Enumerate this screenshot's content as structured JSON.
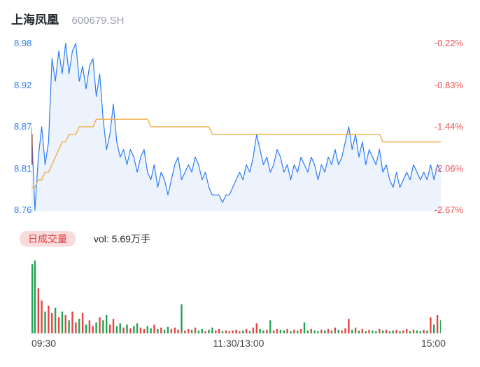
{
  "header": {
    "name": "上海凤凰",
    "code": "600679.SH"
  },
  "volume_header": {
    "badge": "日成交量",
    "label": "vol: 5.69万手",
    "total_volume": "5.69万手"
  },
  "chart_data": {
    "type": "line",
    "title": "上海凤凰 600679.SH 分时走势",
    "prev_close": 9.0,
    "ylim": [
      8.76,
      8.98
    ],
    "grid": false,
    "legend_position": "none",
    "x_ticks": [
      "09:30",
      "11:30/13:00",
      "15:00"
    ],
    "y_left_labels": [
      "8.98",
      "8.92",
      "8.87",
      "8.81",
      "8.76"
    ],
    "y_right_labels": [
      "-0.22%",
      "-0.83%",
      "-1.44%",
      "-2.06%",
      "-2.67%"
    ],
    "open_marker": {
      "price_from": 8.86,
      "price_to": 8.82
    },
    "series": [
      {
        "name": "price",
        "values": [
          8.87,
          8.76,
          8.83,
          8.87,
          8.82,
          8.85,
          8.96,
          8.93,
          8.97,
          8.94,
          8.98,
          8.94,
          8.97,
          8.98,
          8.93,
          8.95,
          8.92,
          8.95,
          8.96,
          8.91,
          8.94,
          8.88,
          8.84,
          8.86,
          8.9,
          8.85,
          8.83,
          8.84,
          8.82,
          8.84,
          8.83,
          8.81,
          8.83,
          8.84,
          8.81,
          8.8,
          8.82,
          8.79,
          8.81,
          8.8,
          8.78,
          8.8,
          8.82,
          8.83,
          8.8,
          8.81,
          8.82,
          8.81,
          8.83,
          8.82,
          8.8,
          8.81,
          8.79,
          8.78,
          8.78,
          8.78,
          8.77,
          8.78,
          8.78,
          8.79,
          8.8,
          8.81,
          8.8,
          8.82,
          8.81,
          8.83,
          8.86,
          8.84,
          8.82,
          8.83,
          8.81,
          8.82,
          8.84,
          8.83,
          8.81,
          8.82,
          8.8,
          8.82,
          8.81,
          8.83,
          8.82,
          8.81,
          8.83,
          8.82,
          8.8,
          8.82,
          8.81,
          8.83,
          8.82,
          8.84,
          8.82,
          8.83,
          8.85,
          8.87,
          8.84,
          8.86,
          8.83,
          8.85,
          8.82,
          8.84,
          8.83,
          8.82,
          8.84,
          8.81,
          8.82,
          8.8,
          8.79,
          8.81,
          8.79,
          8.8,
          8.81,
          8.8,
          8.82,
          8.81,
          8.8,
          8.81,
          8.8,
          8.82,
          8.8,
          8.82,
          8.81
        ]
      },
      {
        "name": "avg_price",
        "values": [
          8.79,
          8.79,
          8.8,
          8.8,
          8.81,
          8.81,
          8.82,
          8.83,
          8.84,
          8.85,
          8.85,
          8.86,
          8.86,
          8.86,
          8.87,
          8.87,
          8.87,
          8.87,
          8.87,
          8.88,
          8.88,
          8.88,
          8.88,
          8.88,
          8.88,
          8.88,
          8.88,
          8.88,
          8.88,
          8.88,
          8.88,
          8.88,
          8.88,
          8.88,
          8.88,
          8.87,
          8.87,
          8.87,
          8.87,
          8.87,
          8.87,
          8.87,
          8.87,
          8.87,
          8.87,
          8.87,
          8.87,
          8.87,
          8.87,
          8.87,
          8.87,
          8.87,
          8.87,
          8.86,
          8.86,
          8.86,
          8.86,
          8.86,
          8.86,
          8.86,
          8.86,
          8.86,
          8.86,
          8.86,
          8.86,
          8.86,
          8.86,
          8.86,
          8.86,
          8.86,
          8.86,
          8.86,
          8.86,
          8.86,
          8.86,
          8.86,
          8.86,
          8.86,
          8.86,
          8.86,
          8.86,
          8.86,
          8.86,
          8.86,
          8.86,
          8.86,
          8.86,
          8.86,
          8.86,
          8.86,
          8.86,
          8.86,
          8.86,
          8.86,
          8.86,
          8.86,
          8.86,
          8.86,
          8.86,
          8.86,
          8.86,
          8.86,
          8.86,
          8.85,
          8.85,
          8.85,
          8.85,
          8.85,
          8.85,
          8.85,
          8.85,
          8.85,
          8.85,
          8.85,
          8.85,
          8.85,
          8.85,
          8.85,
          8.85,
          8.85,
          8.85
        ]
      },
      {
        "name": "volume",
        "values": [
          95,
          100,
          62,
          45,
          30,
          38,
          28,
          35,
          22,
          30,
          25,
          18,
          30,
          15,
          20,
          28,
          12,
          18,
          10,
          15,
          22,
          18,
          25,
          12,
          20,
          10,
          14,
          8,
          12,
          7,
          10,
          14,
          8,
          6,
          10,
          7,
          12,
          6,
          8,
          5,
          9,
          6,
          8,
          5,
          40,
          4,
          6,
          5,
          8,
          4,
          6,
          3,
          5,
          8,
          4,
          6,
          3,
          4,
          3,
          4,
          5,
          3,
          4,
          6,
          3,
          8,
          14,
          6,
          4,
          5,
          18,
          4,
          6,
          5,
          4,
          6,
          3,
          5,
          4,
          6,
          15,
          4,
          6,
          4,
          3,
          5,
          4,
          6,
          4,
          8,
          5,
          4,
          7,
          20,
          5,
          8,
          4,
          6,
          3,
          5,
          4,
          3,
          6,
          4,
          5,
          3,
          4,
          5,
          3,
          4,
          6,
          3,
          5,
          4,
          3,
          5,
          4,
          22,
          12,
          25,
          18
        ]
      }
    ]
  },
  "colors": {
    "price_line": "#2e7cf6",
    "price_fill": "#ecf3fd",
    "avg_line": "#f2b14f",
    "up": "#e84342",
    "down": "#22a454",
    "left_label": "#2e7cf6",
    "right_label": "#f15152",
    "badge_bg": "#fadbdb",
    "badge_text": "#e03e3e",
    "open_marker": "#a04840"
  }
}
